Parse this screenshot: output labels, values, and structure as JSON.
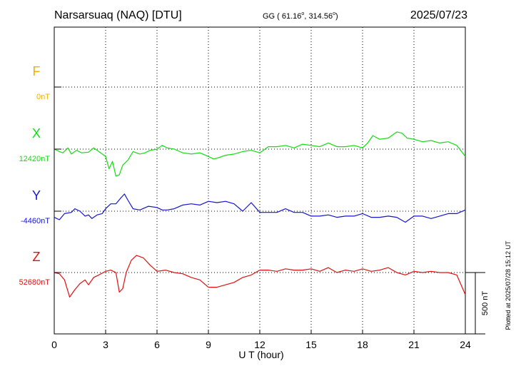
{
  "header": {
    "station": "Narsarsuaq (NAQ)  [DTU]",
    "coords_prefix": "GG ( 61.16",
    "coords_mid": ", 314.56",
    "coords_suffix": ")",
    "date": "2025/07/23"
  },
  "side_note": "Plotted at 2025/07/28 15:12 UT",
  "scale_bar": {
    "label": "500 nT",
    "value_nT": 500
  },
  "colors": {
    "F": "#f0b000",
    "X": "#11dd11",
    "Y": "#1515d0",
    "Z": "#e01010",
    "axis": "#000000"
  },
  "chart_data": {
    "type": "line",
    "xlabel": "U T (hour)",
    "xlim": [
      0,
      24
    ],
    "xticks": [
      "0",
      "3",
      "6",
      "9",
      "12",
      "15",
      "18",
      "21",
      "24"
    ],
    "units_per_division_nT": 500,
    "series": [
      {
        "name": "F",
        "baseline_label": "0nT",
        "points": []
      },
      {
        "name": "X",
        "baseline_label": "12420nT",
        "points": [
          [
            0,
            0
          ],
          [
            0.3,
            -20
          ],
          [
            0.5,
            -30
          ],
          [
            0.8,
            10
          ],
          [
            1,
            -40
          ],
          [
            1.3,
            -10
          ],
          [
            1.6,
            -30
          ],
          [
            2,
            -25
          ],
          [
            2.3,
            10
          ],
          [
            2.6,
            -20
          ],
          [
            3,
            -60
          ],
          [
            3.2,
            -160
          ],
          [
            3.4,
            -100
          ],
          [
            3.6,
            -220
          ],
          [
            3.8,
            -210
          ],
          [
            4,
            -130
          ],
          [
            4.3,
            -90
          ],
          [
            4.6,
            -20
          ],
          [
            5,
            -40
          ],
          [
            5.3,
            -30
          ],
          [
            5.6,
            -10
          ],
          [
            6,
            0
          ],
          [
            6.3,
            30
          ],
          [
            6.6,
            10
          ],
          [
            7,
            0
          ],
          [
            7.5,
            -30
          ],
          [
            8,
            -40
          ],
          [
            8.5,
            -30
          ],
          [
            9,
            -60
          ],
          [
            9.3,
            -80
          ],
          [
            9.6,
            -70
          ],
          [
            10,
            -50
          ],
          [
            10.5,
            -40
          ],
          [
            11,
            -20
          ],
          [
            11.5,
            -10
          ],
          [
            12,
            -30
          ],
          [
            12.5,
            20
          ],
          [
            13,
            20
          ],
          [
            13.5,
            30
          ],
          [
            14,
            10
          ],
          [
            14.5,
            40
          ],
          [
            15,
            30
          ],
          [
            15.5,
            20
          ],
          [
            16,
            50
          ],
          [
            16.5,
            20
          ],
          [
            17,
            20
          ],
          [
            17.5,
            30
          ],
          [
            18,
            10
          ],
          [
            18.3,
            50
          ],
          [
            18.6,
            110
          ],
          [
            19,
            80
          ],
          [
            19.5,
            90
          ],
          [
            20,
            140
          ],
          [
            20.3,
            130
          ],
          [
            20.6,
            90
          ],
          [
            21,
            80
          ],
          [
            21.5,
            60
          ],
          [
            22,
            70
          ],
          [
            22.5,
            50
          ],
          [
            23,
            60
          ],
          [
            23.5,
            30
          ],
          [
            24,
            -60
          ]
        ]
      },
      {
        "name": "Y",
        "baseline_label": "-4460nT",
        "points": [
          [
            0,
            -50
          ],
          [
            0.3,
            -70
          ],
          [
            0.6,
            -20
          ],
          [
            1,
            -10
          ],
          [
            1.2,
            20
          ],
          [
            1.5,
            0
          ],
          [
            1.8,
            -40
          ],
          [
            2,
            -30
          ],
          [
            2.2,
            -60
          ],
          [
            2.5,
            -30
          ],
          [
            2.8,
            -20
          ],
          [
            3,
            20
          ],
          [
            3.3,
            60
          ],
          [
            3.6,
            60
          ],
          [
            3.9,
            110
          ],
          [
            4.1,
            140
          ],
          [
            4.3,
            90
          ],
          [
            4.6,
            20
          ],
          [
            5,
            10
          ],
          [
            5.5,
            40
          ],
          [
            6,
            30
          ],
          [
            6.3,
            10
          ],
          [
            6.6,
            10
          ],
          [
            7,
            20
          ],
          [
            7.5,
            50
          ],
          [
            8,
            60
          ],
          [
            8.5,
            50
          ],
          [
            9,
            80
          ],
          [
            9.5,
            70
          ],
          [
            10,
            80
          ],
          [
            10.5,
            60
          ],
          [
            11,
            0
          ],
          [
            11.5,
            70
          ],
          [
            12,
            -10
          ],
          [
            12.5,
            -10
          ],
          [
            13,
            -10
          ],
          [
            13.5,
            20
          ],
          [
            14,
            -10
          ],
          [
            14.5,
            -10
          ],
          [
            15,
            -40
          ],
          [
            15.5,
            -40
          ],
          [
            16,
            -30
          ],
          [
            16.5,
            -50
          ],
          [
            17,
            -40
          ],
          [
            17.5,
            -40
          ],
          [
            18,
            -20
          ],
          [
            18.5,
            -50
          ],
          [
            19,
            -50
          ],
          [
            19.5,
            -40
          ],
          [
            20,
            -50
          ],
          [
            20.5,
            -90
          ],
          [
            21,
            -40
          ],
          [
            21.5,
            -40
          ],
          [
            22,
            -60
          ],
          [
            22.5,
            -40
          ],
          [
            23,
            -20
          ],
          [
            23.5,
            -20
          ],
          [
            24,
            10
          ]
        ]
      },
      {
        "name": "Z",
        "baseline_label": "52680nT",
        "points": [
          [
            0,
            0
          ],
          [
            0.3,
            -10
          ],
          [
            0.6,
            -60
          ],
          [
            0.9,
            -200
          ],
          [
            1.2,
            -140
          ],
          [
            1.5,
            -90
          ],
          [
            1.8,
            -60
          ],
          [
            2,
            -100
          ],
          [
            2.3,
            -40
          ],
          [
            2.6,
            -20
          ],
          [
            3,
            10
          ],
          [
            3.3,
            20
          ],
          [
            3.6,
            0
          ],
          [
            3.8,
            -160
          ],
          [
            4,
            -130
          ],
          [
            4.2,
            0
          ],
          [
            4.5,
            100
          ],
          [
            4.8,
            140
          ],
          [
            5.2,
            120
          ],
          [
            5.6,
            60
          ],
          [
            6,
            10
          ],
          [
            6.5,
            20
          ],
          [
            7,
            0
          ],
          [
            7.5,
            -10
          ],
          [
            8,
            -40
          ],
          [
            8.5,
            -60
          ],
          [
            9,
            -120
          ],
          [
            9.5,
            -120
          ],
          [
            10,
            -100
          ],
          [
            10.5,
            -80
          ],
          [
            11,
            -40
          ],
          [
            11.5,
            -20
          ],
          [
            12,
            20
          ],
          [
            12.5,
            20
          ],
          [
            13,
            10
          ],
          [
            13.5,
            30
          ],
          [
            14,
            20
          ],
          [
            14.5,
            20
          ],
          [
            15,
            30
          ],
          [
            15.5,
            10
          ],
          [
            16,
            40
          ],
          [
            16.5,
            0
          ],
          [
            17,
            20
          ],
          [
            17.5,
            10
          ],
          [
            18,
            30
          ],
          [
            18.5,
            10
          ],
          [
            19,
            20
          ],
          [
            19.5,
            40
          ],
          [
            20,
            0
          ],
          [
            20.5,
            -20
          ],
          [
            21,
            10
          ],
          [
            21.5,
            0
          ],
          [
            22,
            10
          ],
          [
            22.5,
            0
          ],
          [
            23,
            0
          ],
          [
            23.5,
            -20
          ],
          [
            24,
            -180
          ]
        ]
      }
    ]
  }
}
